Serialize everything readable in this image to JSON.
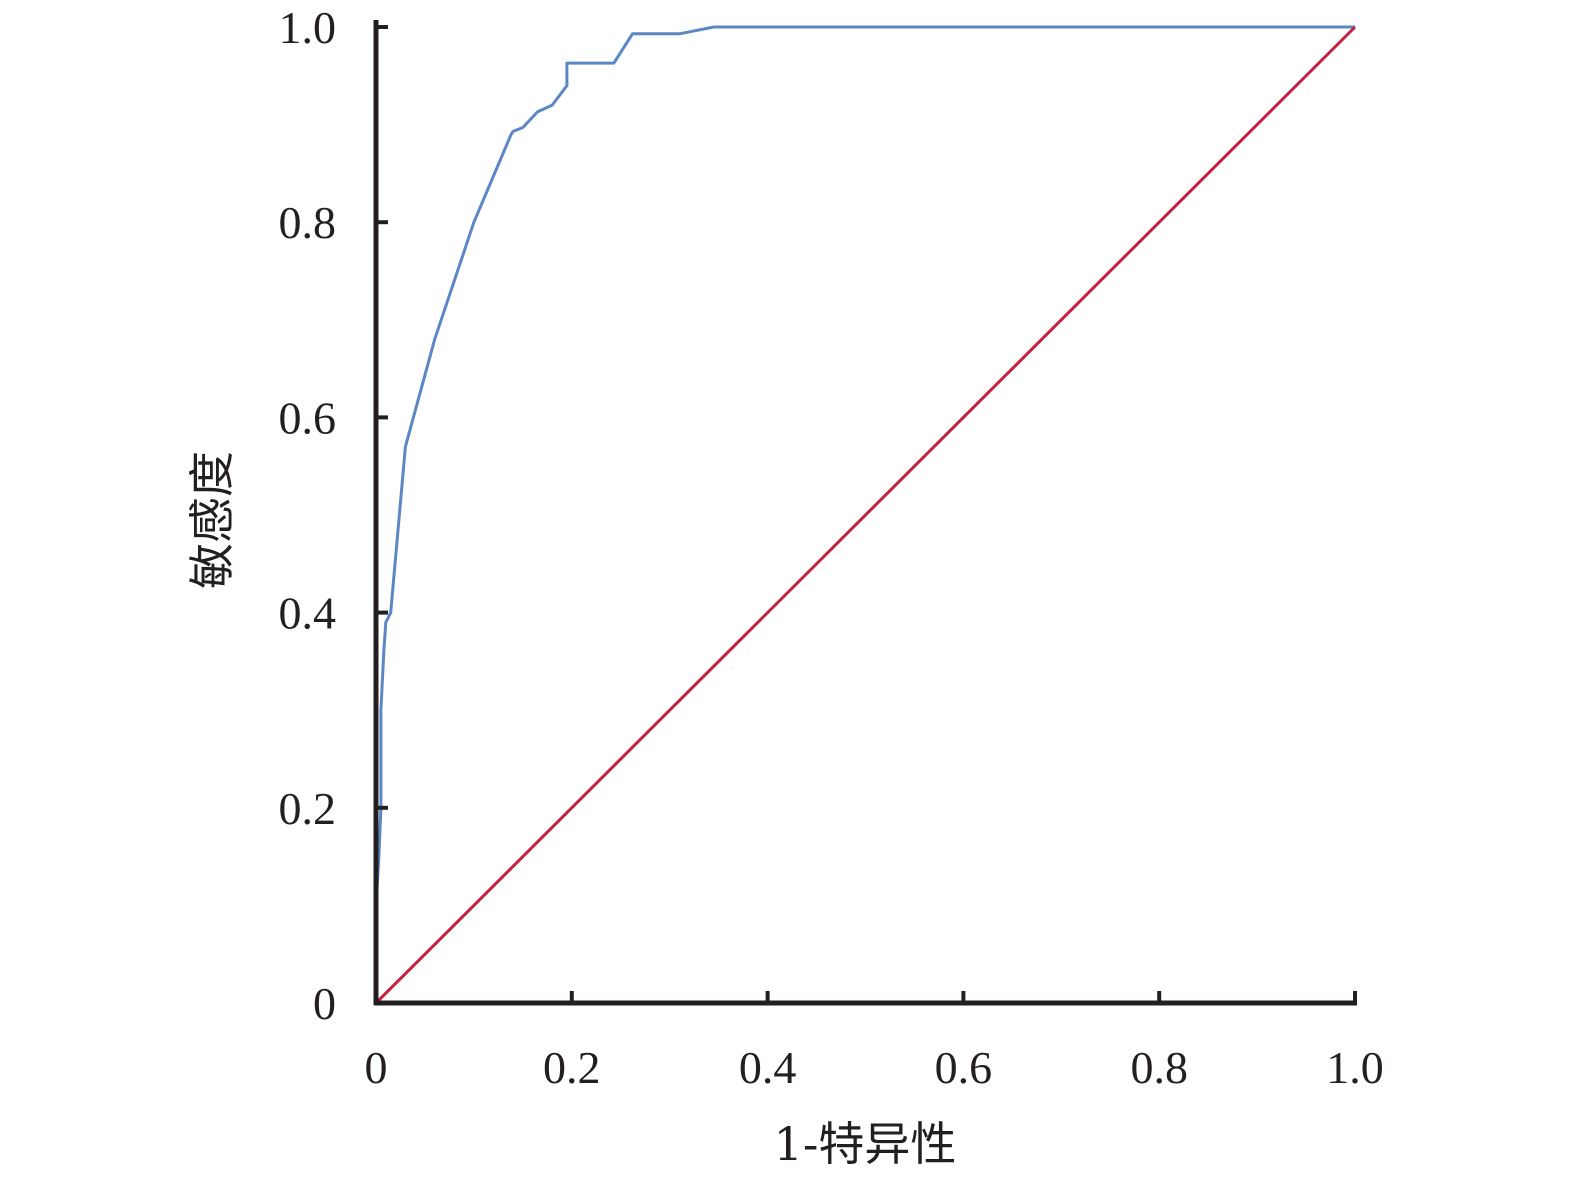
{
  "chart_data": {
    "type": "line",
    "title": "",
    "xlabel": "1-特异性",
    "ylabel": "敏感度",
    "xlim": [
      0,
      1.0
    ],
    "ylim": [
      0,
      1.0
    ],
    "x_ticks": [
      "0",
      "0.2",
      "0.4",
      "0.6",
      "0.8",
      "1.0"
    ],
    "y_ticks": [
      "0",
      "0.2",
      "0.4",
      "0.6",
      "0.8",
      "1.0"
    ],
    "grid": false,
    "legend": "none",
    "series": [
      {
        "color": "#5b87c5",
        "points": [
          [
            0.0,
            0.0
          ],
          [
            0.0,
            0.1
          ],
          [
            0.003,
            0.15
          ],
          [
            0.005,
            0.2
          ],
          [
            0.005,
            0.3
          ],
          [
            0.008,
            0.36
          ],
          [
            0.01,
            0.39
          ],
          [
            0.015,
            0.4
          ],
          [
            0.03,
            0.57
          ],
          [
            0.06,
            0.68
          ],
          [
            0.1,
            0.8
          ],
          [
            0.138,
            0.89
          ],
          [
            0.14,
            0.893
          ],
          [
            0.15,
            0.897
          ],
          [
            0.165,
            0.913
          ],
          [
            0.18,
            0.92
          ],
          [
            0.195,
            0.94
          ],
          [
            0.195,
            0.963
          ],
          [
            0.243,
            0.963
          ],
          [
            0.262,
            0.993
          ],
          [
            0.31,
            0.993
          ],
          [
            0.345,
            1.0
          ],
          [
            1.0,
            1.0
          ]
        ]
      },
      {
        "color": "#c3213e",
        "points": [
          [
            0,
            0
          ],
          [
            1.0,
            1.0
          ]
        ]
      }
    ]
  }
}
